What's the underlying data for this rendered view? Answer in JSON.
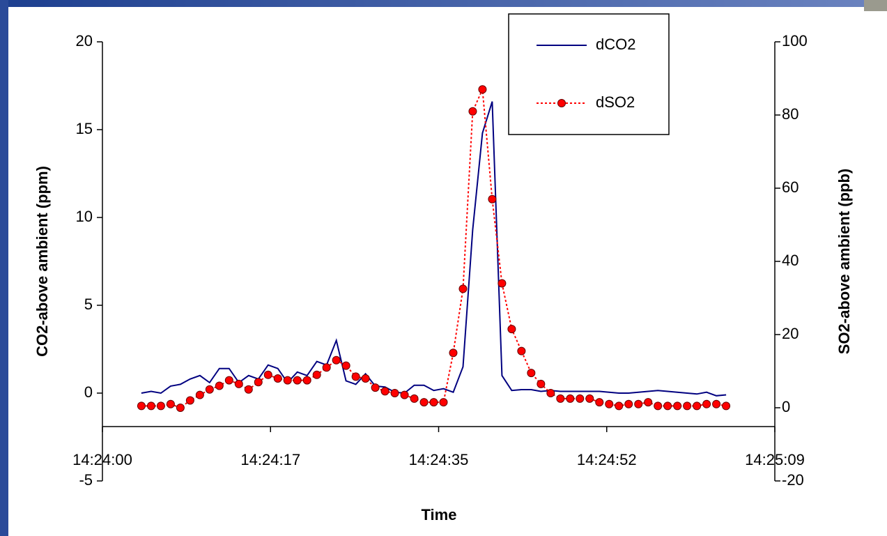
{
  "chart_data": {
    "type": "line",
    "x_label": "Time",
    "y_label": "CO2-above ambient (ppm)",
    "y2_label": "SO2-above ambient  (ppb)",
    "x": [
      "14:24:04",
      "14:24:05",
      "14:24:06",
      "14:24:07",
      "14:24:08",
      "14:24:09",
      "14:24:10",
      "14:24:11",
      "14:24:12",
      "14:24:13",
      "14:24:14",
      "14:24:15",
      "14:24:16",
      "14:24:17",
      "14:24:18",
      "14:24:19",
      "14:24:20",
      "14:24:21",
      "14:24:22",
      "14:24:23",
      "14:24:24",
      "14:24:25",
      "14:24:26",
      "14:24:27",
      "14:24:28",
      "14:24:29",
      "14:24:30",
      "14:24:31",
      "14:24:32",
      "14:24:33",
      "14:24:34",
      "14:24:35",
      "14:24:36",
      "14:24:37",
      "14:24:38",
      "14:24:39",
      "14:24:40",
      "14:24:41",
      "14:24:42",
      "14:24:43",
      "14:24:44",
      "14:24:45",
      "14:24:46",
      "14:24:47",
      "14:24:48",
      "14:24:49",
      "14:24:50",
      "14:24:51",
      "14:24:52",
      "14:24:53",
      "14:24:54",
      "14:24:55",
      "14:24:56",
      "14:24:57",
      "14:24:58",
      "14:24:59",
      "14:25:00",
      "14:25:01",
      "14:25:02",
      "14:25:03",
      "14:25:04"
    ],
    "series": [
      {
        "name": "dCO2",
        "color": "#000080",
        "axis": "y",
        "line_style": "solid",
        "marker": "none",
        "values": [
          0,
          0.1,
          0,
          0.4,
          0.5,
          0.8,
          1.0,
          0.6,
          1.4,
          1.4,
          0.6,
          1.0,
          0.8,
          1.6,
          1.4,
          0.6,
          1.2,
          1.0,
          1.8,
          1.6,
          3.0,
          0.7,
          0.5,
          1.1,
          0.4,
          0.35,
          0.05,
          0,
          0.45,
          0.45,
          0.15,
          0.25,
          0.05,
          1.5,
          9.3,
          14.8,
          16.6,
          1.0,
          0.15,
          0.2,
          0.2,
          0.1,
          0.15,
          0.1,
          0.1,
          0.1,
          0.1,
          0.1,
          0.05,
          0,
          0,
          0.05,
          0.1,
          0.15,
          0.1,
          0.05,
          0,
          -0.05,
          0.05,
          -0.15,
          -0.1
        ]
      },
      {
        "name": "dSO2",
        "color": "#ff0000",
        "axis": "y2",
        "line_style": "dotted",
        "marker": "circle",
        "values": [
          0.5,
          0.5,
          0.5,
          1,
          0,
          2,
          3.5,
          5,
          6,
          7.5,
          6.5,
          5,
          7,
          9,
          8,
          7.5,
          7.5,
          7.5,
          9,
          11,
          13,
          11.5,
          8.5,
          8,
          5.5,
          4.5,
          4,
          3.5,
          2.5,
          1.5,
          1.5,
          1.5,
          15,
          32.5,
          81,
          87,
          57,
          34,
          21.5,
          15.5,
          9.5,
          6.5,
          4,
          2.5,
          2.5,
          2.5,
          2.5,
          1.5,
          1,
          0.5,
          1,
          1,
          1.5,
          0.5,
          0.5,
          0.5,
          0.5,
          0.5,
          1,
          1,
          0.5
        ]
      }
    ],
    "xlim": [
      "14:24:00",
      "14:25:09"
    ],
    "xticks": [
      "14:24:00",
      {
        "value": "14:24:17.25",
        "label": "14:24:17"
      },
      {
        "value": "14:24:34.5",
        "label": "14:24:35"
      },
      {
        "value": "14:24:51.75",
        "label": "14:24:52"
      },
      "14:25:09"
    ],
    "ylim": [
      -5,
      20
    ],
    "yticks": [
      -5,
      0,
      5,
      10,
      15,
      20
    ],
    "y2lim": [
      -20,
      100
    ],
    "y2ticks": [
      -20,
      0,
      20,
      40,
      60,
      80,
      100
    ],
    "legend": "upper right",
    "grid": false
  }
}
